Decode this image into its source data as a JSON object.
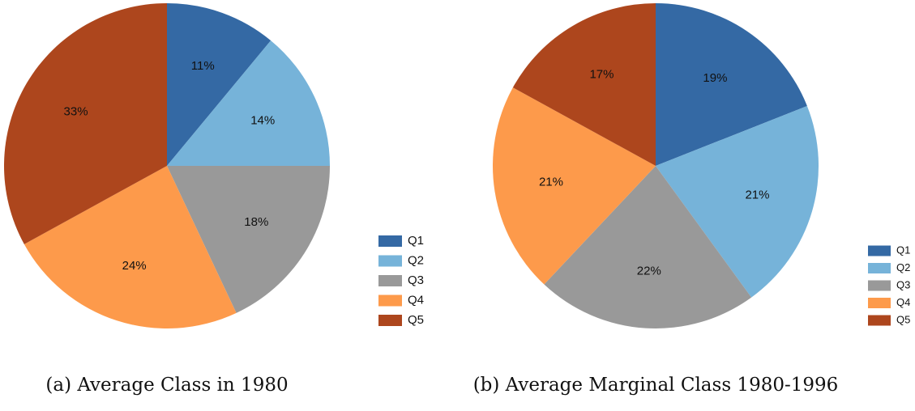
{
  "chart_data": [
    {
      "type": "pie",
      "title": "(a) Average Class in 1980",
      "categories": [
        "Q1",
        "Q2",
        "Q3",
        "Q4",
        "Q5"
      ],
      "values": [
        11,
        14,
        18,
        24,
        33
      ],
      "value_labels": [
        "11%",
        "14%",
        "18%",
        "24%",
        "33%"
      ],
      "colors": [
        "#3469a4",
        "#76b3d9",
        "#999999",
        "#fd9a4b",
        "#ad461d"
      ]
    },
    {
      "type": "pie",
      "title": "(b) Average Marginal Class 1980-1996",
      "categories": [
        "Q1",
        "Q2",
        "Q3",
        "Q4",
        "Q5"
      ],
      "values": [
        19,
        21,
        22,
        21,
        17
      ],
      "value_labels": [
        "19%",
        "21%",
        "22%",
        "21%",
        "17%"
      ],
      "colors": [
        "#3469a4",
        "#76b3d9",
        "#999999",
        "#fd9a4b",
        "#ad461d"
      ]
    }
  ]
}
